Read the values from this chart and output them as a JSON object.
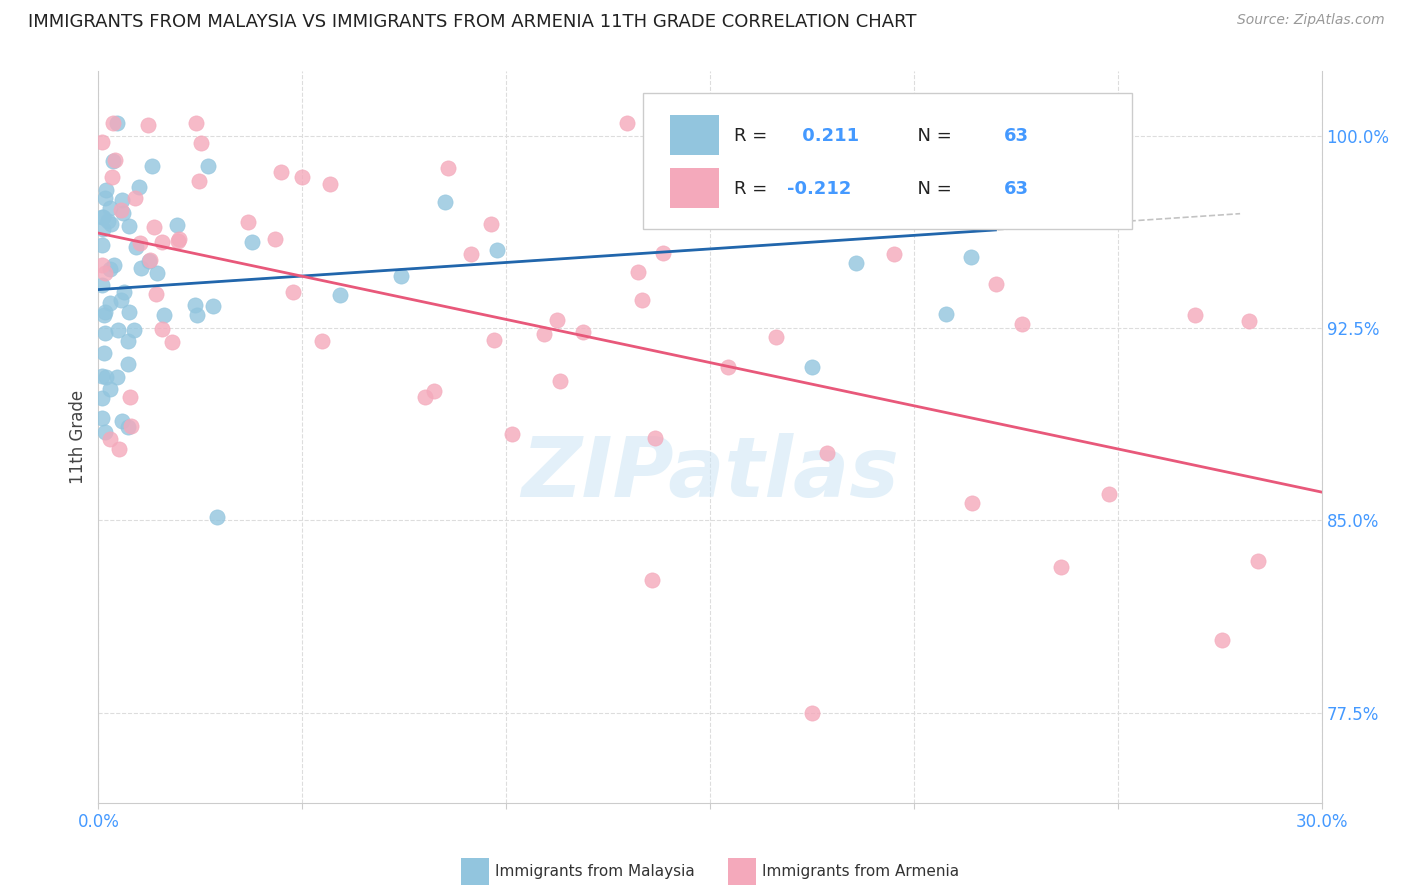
{
  "title": "IMMIGRANTS FROM MALAYSIA VS IMMIGRANTS FROM ARMENIA 11TH GRADE CORRELATION CHART",
  "source": "Source: ZipAtlas.com",
  "ylabel": "11th Grade",
  "y_ticks": [
    77.5,
    85.0,
    92.5,
    100.0
  ],
  "y_tick_labels": [
    "77.5%",
    "85.0%",
    "92.5%",
    "100.0%"
  ],
  "x_ticks": [
    0.0,
    0.05,
    0.1,
    0.15,
    0.2,
    0.25,
    0.3
  ],
  "xlim": [
    0.0,
    0.3
  ],
  "ylim": [
    74.0,
    102.5
  ],
  "malaysia_color": "#92c5de",
  "armenia_color": "#f4a9bb",
  "malaysia_line_color": "#2166ac",
  "armenia_line_color": "#e8587a",
  "R_malaysia": 0.211,
  "N_malaysia": 63,
  "R_armenia": -0.212,
  "N_armenia": 63,
  "legend_label_malaysia": "Immigrants from Malaysia",
  "legend_label_armenia": "Immigrants from Armenia",
  "watermark": "ZIPatlas",
  "background_color": "#ffffff",
  "grid_color": "#dddddd"
}
